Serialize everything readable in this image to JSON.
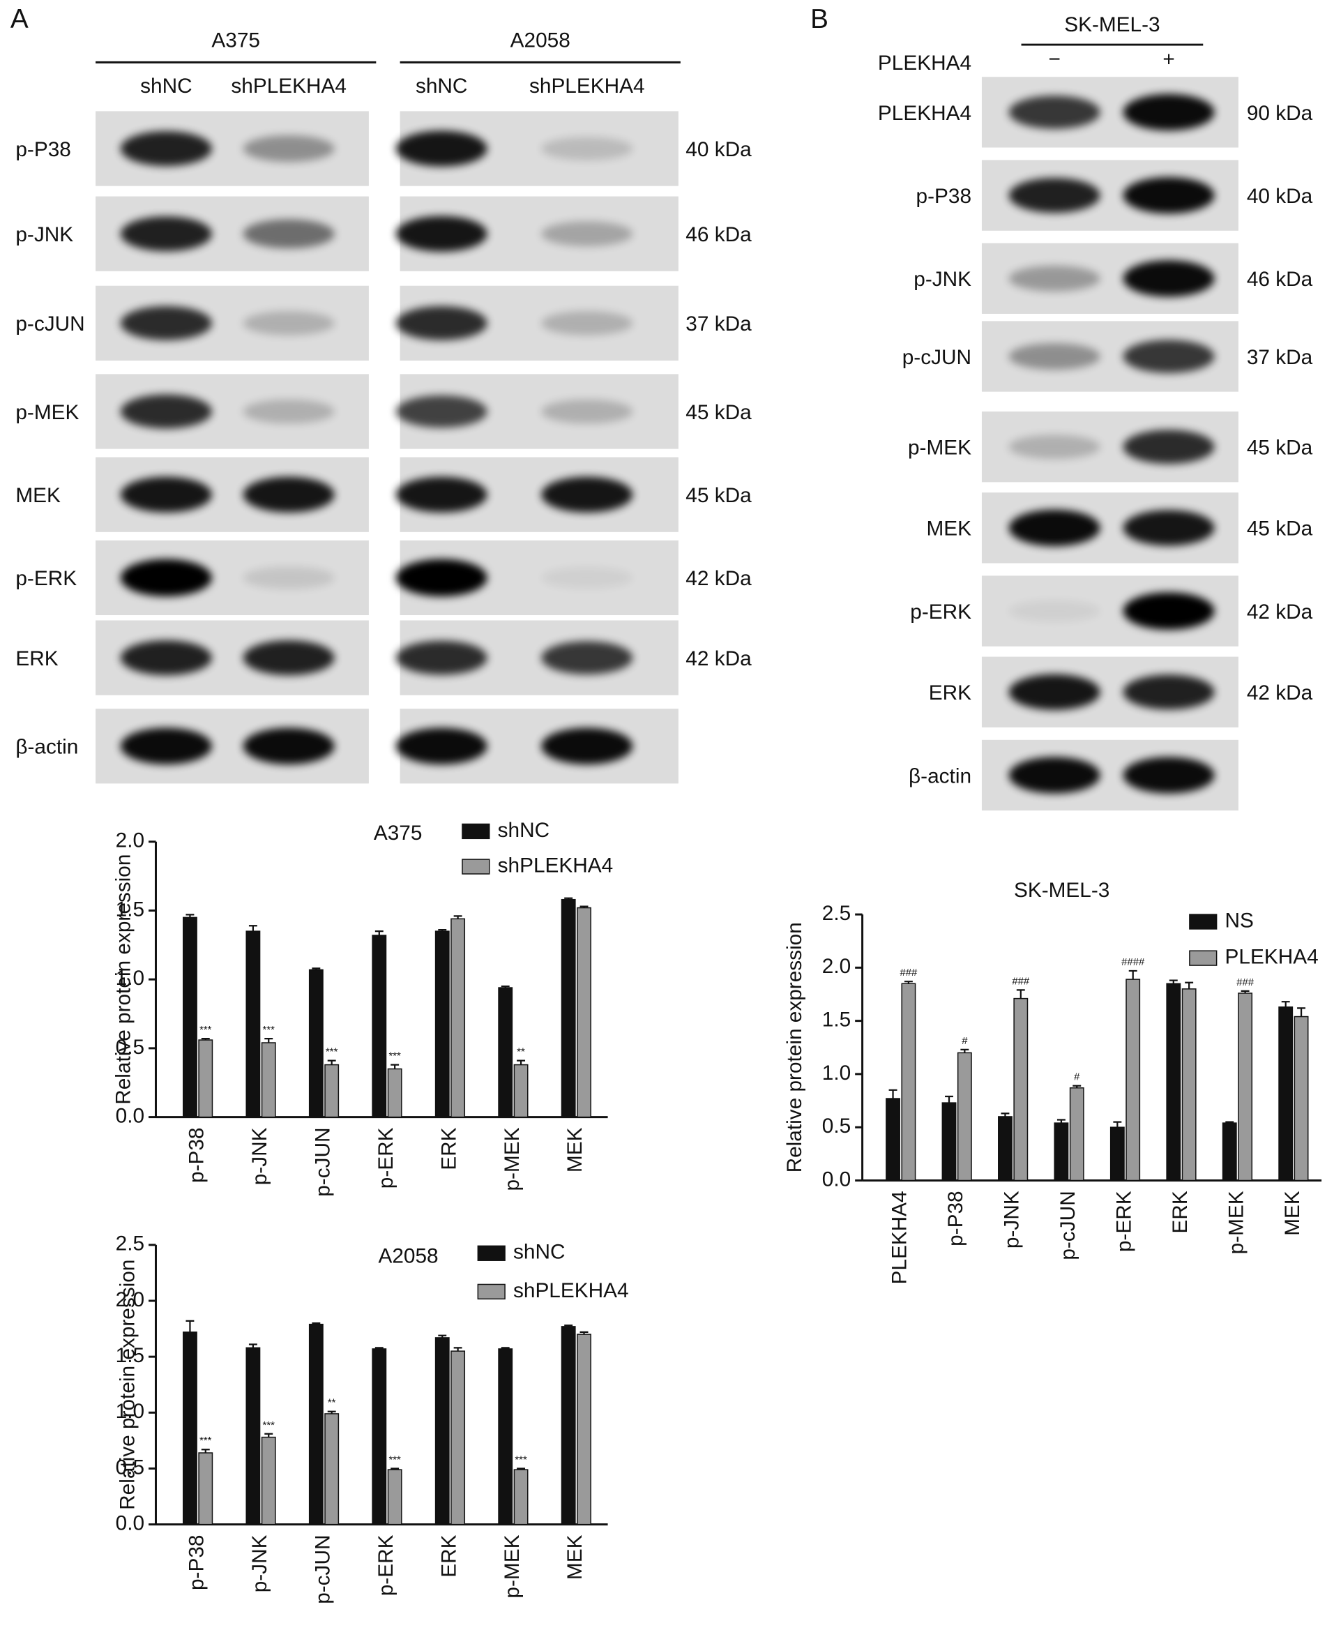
{
  "blots": [
    {
      "panel": "A",
      "groups": [
        {
          "name": "A375",
          "conditions": [
            "shNC",
            "shPLEKHA4"
          ]
        },
        {
          "name": "A2058",
          "conditions": [
            "shNC",
            "shPLEKHA4"
          ]
        }
      ],
      "rows": [
        {
          "protein": "p-P38",
          "kda": "40 kDa"
        },
        {
          "protein": "p-JNK",
          "kda": "46 kDa"
        },
        {
          "protein": "p-cJUN",
          "kda": "37 kDa"
        },
        {
          "protein": "p-MEK",
          "kda": "45 kDa"
        },
        {
          "protein": "MEK",
          "kda": "45 kDa"
        },
        {
          "protein": "p-ERK",
          "kda": "42 kDa"
        },
        {
          "protein": "ERK",
          "kda": "42 kDa"
        },
        {
          "protein": "β-actin"
        }
      ]
    },
    {
      "panel": "B",
      "groups": [
        {
          "name": "SK-MEL-3",
          "factor": "PLEKHA4",
          "conditions": [
            "−",
            "+"
          ]
        }
      ],
      "rows": [
        {
          "protein": "PLEKHA4",
          "kda": "90 kDa"
        },
        {
          "protein": "p-P38",
          "kda": "40 kDa"
        },
        {
          "protein": "p-JNK",
          "kda": "46 kDa"
        },
        {
          "protein": "p-cJUN",
          "kda": "37 kDa"
        },
        {
          "protein": "p-MEK",
          "kda": "45 kDa"
        },
        {
          "protein": "MEK",
          "kda": "45 kDa"
        },
        {
          "protein": "p-ERK",
          "kda": "42 kDa"
        },
        {
          "protein": "ERK",
          "kda": "42 kDa"
        },
        {
          "protein": "β-actin"
        }
      ]
    }
  ],
  "chart_data": [
    {
      "type": "bar",
      "title": "A375",
      "ylabel": "Relative protein expression",
      "categories": [
        "p-P38",
        "p-JNK",
        "p-cJUN",
        "p-ERK",
        "ERK",
        "p-MEK",
        "MEK"
      ],
      "series": [
        {
          "name": "shNC",
          "color": "#111111",
          "values": [
            1.45,
            1.35,
            1.07,
            1.32,
            1.35,
            0.94,
            1.58
          ],
          "errors": [
            0.02,
            0.04,
            0.01,
            0.03,
            0.01,
            0.01,
            0.01
          ],
          "annotations": [
            null,
            null,
            null,
            null,
            null,
            null,
            null
          ]
        },
        {
          "name": "shPLEKHA4",
          "color": "#9a9a9a",
          "values": [
            0.56,
            0.54,
            0.38,
            0.35,
            1.44,
            0.38,
            1.52
          ],
          "errors": [
            0.01,
            0.03,
            0.03,
            0.03,
            0.02,
            0.03,
            0.01
          ],
          "annotations": [
            "***",
            "***",
            "***",
            "***",
            null,
            "**",
            null
          ]
        }
      ],
      "ylim": [
        0,
        2.0
      ],
      "yticks": [
        {
          "value": 0,
          "label": "0.0"
        },
        0.5,
        {
          "value": 1,
          "label": "1.0"
        },
        1.5,
        {
          "value": 2,
          "label": "2.0"
        }
      ]
    },
    {
      "type": "bar",
      "title": "A2058",
      "ylabel": "Relative protein expression",
      "categories": [
        "p-P38",
        "p-JNK",
        "p-cJUN",
        "p-ERK",
        "ERK",
        "p-MEK",
        "MEK"
      ],
      "series": [
        {
          "name": "shNC",
          "color": "#111111",
          "values": [
            1.72,
            1.58,
            1.79,
            1.57,
            1.67,
            1.57,
            1.77
          ],
          "errors": [
            0.1,
            0.03,
            0.01,
            0.01,
            0.02,
            0.01,
            0.01
          ],
          "annotations": [
            null,
            null,
            null,
            null,
            null,
            null,
            null
          ]
        },
        {
          "name": "shPLEKHA4",
          "color": "#9a9a9a",
          "values": [
            0.64,
            0.78,
            0.99,
            0.49,
            1.55,
            0.49,
            1.7
          ],
          "errors": [
            0.03,
            0.03,
            0.02,
            0.01,
            0.03,
            0.01,
            0.02
          ],
          "annotations": [
            "***",
            "***",
            "**",
            "***",
            null,
            "***",
            null
          ]
        }
      ],
      "ylim": [
        0,
        2.5
      ],
      "yticks": [
        {
          "value": 0,
          "label": "0.0"
        },
        0.5,
        {
          "value": 1,
          "label": "1.0"
        },
        1.5,
        {
          "value": 2,
          "label": "2.0"
        },
        2.5
      ]
    },
    {
      "type": "bar",
      "title": "SK-MEL-3",
      "ylabel": "Relative protein expression",
      "categories": [
        "PLEKHA4",
        "p-P38",
        "p-JNK",
        "p-cJUN",
        "p-ERK",
        "ERK",
        "p-MEK",
        "MEK"
      ],
      "series": [
        {
          "name": "NS",
          "color": "#111111",
          "values": [
            0.77,
            0.73,
            0.6,
            0.54,
            0.5,
            1.85,
            0.54,
            1.63
          ],
          "errors": [
            0.08,
            0.06,
            0.03,
            0.03,
            0.05,
            0.03,
            0.01,
            0.05
          ],
          "annotations": [
            null,
            null,
            null,
            null,
            null,
            null,
            null,
            null
          ]
        },
        {
          "name": "PLEKHA4",
          "color": "#9a9a9a",
          "values": [
            1.85,
            1.2,
            1.71,
            0.87,
            1.89,
            1.8,
            1.76,
            1.54
          ],
          "errors": [
            0.02,
            0.03,
            0.08,
            0.02,
            0.08,
            0.06,
            0.02,
            0.08
          ],
          "annotations": [
            "###",
            "#",
            "###",
            "#",
            "####",
            null,
            "###",
            null
          ]
        }
      ],
      "ylim": [
        0,
        2.5
      ],
      "yticks": [
        {
          "value": 0,
          "label": "0.0"
        },
        0.5,
        {
          "value": 1,
          "label": "1.0"
        },
        1.5,
        {
          "value": 2,
          "label": "2.0"
        },
        2.5
      ]
    }
  ]
}
